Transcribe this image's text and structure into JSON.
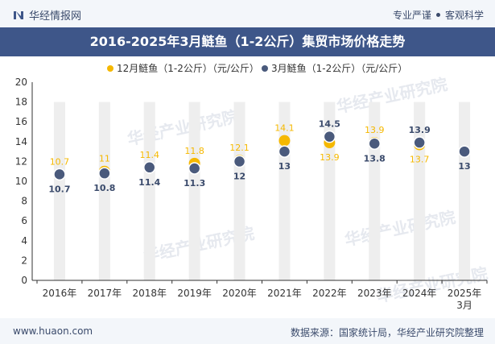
{
  "header": {
    "brand": "华经情报网",
    "tag_left": "专业严谨",
    "tag_right": "客观科学"
  },
  "title": "2016-2025年3月鲢鱼（1-2公斤）集贸市场价格走势",
  "footer": {
    "site": "www.huaon.com",
    "source": "数据来源：国家统计局，华经产业研究院整理"
  },
  "watermark": "华经产业研究院",
  "colors": {
    "series_a": "#f5b800",
    "series_b": "#4a5a7c",
    "header_bg": "#3e5689",
    "bar": "#eeeeee"
  },
  "chart_data": {
    "type": "scatter",
    "categories": [
      "2016年",
      "2017年",
      "2018年",
      "2019年",
      "2020年",
      "2021年",
      "2022年",
      "2023年",
      "2024年",
      "2025年\n3月"
    ],
    "series": [
      {
        "name": "12月鲢鱼（1-2公斤）（元/公斤）",
        "values": [
          10.7,
          11,
          11.4,
          11.8,
          12.1,
          14.1,
          13.9,
          13.9,
          13.7,
          null
        ]
      },
      {
        "name": "3月鲢鱼（1-2公斤）（元/公斤）",
        "values": [
          10.7,
          10.8,
          11.4,
          11.3,
          12,
          13,
          14.5,
          13.8,
          13.9,
          13
        ]
      }
    ],
    "ylim": [
      0,
      20
    ],
    "yticks": [
      0,
      2,
      4,
      6,
      8,
      10,
      12,
      14,
      16,
      18,
      20
    ],
    "legend_position": "top-center"
  }
}
